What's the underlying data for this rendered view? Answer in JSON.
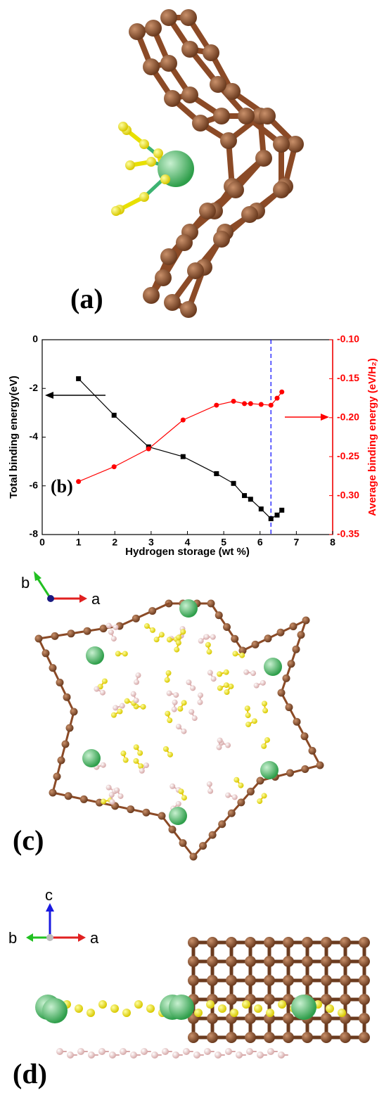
{
  "panels": {
    "a": {
      "label": "(a)"
    },
    "c": {
      "label": "(c)",
      "axes": [
        "b",
        "a"
      ]
    },
    "d": {
      "label": "(d)",
      "axes": [
        "c",
        "b",
        "a"
      ]
    }
  },
  "chart_data": {
    "type": "line",
    "annotation": "(b)",
    "xlabel": "Hydrogen storage (wt %)",
    "ylabel": "Total binding energy(eV)",
    "y2label": "Average binding energy (eV/H₂)",
    "xlim": [
      0,
      8
    ],
    "xticks": [
      0,
      1,
      2,
      3,
      4,
      5,
      6,
      7,
      8
    ],
    "ylim": [
      -8,
      0
    ],
    "yticks": [
      -8,
      -6,
      -4,
      -2,
      0
    ],
    "y2lim": [
      -0.35,
      -0.1
    ],
    "y2ticks": [
      {
        "value": -0.35,
        "label": "-0.35"
      },
      {
        "value": -0.3,
        "label": "-0.30"
      },
      {
        "value": -0.25,
        "label": "-0.25"
      },
      {
        "value": -0.2,
        "label": "-0.20"
      },
      {
        "value": -0.15,
        "label": "-0.15"
      },
      {
        "value": -0.1,
        "label": "-0.10"
      }
    ],
    "y2color": "#ff0000",
    "x": [
      1,
      1.98,
      2.93,
      3.88,
      4.8,
      5.27,
      5.57,
      5.74,
      6.03,
      6.3,
      6.47,
      6.6
    ],
    "series": [
      {
        "color": "#000000",
        "marker": "square",
        "values": [
          -1.6,
          -3.1,
          -4.4,
          -4.8,
          -5.5,
          -5.9,
          -6.4,
          -6.55,
          -6.95,
          -7.35,
          -7.2,
          -7.0
        ]
      },
      {
        "color": "#ff0000",
        "marker": "circle",
        "axis": "y2",
        "values": [
          -0.282,
          -0.263,
          -0.24,
          -0.203,
          -0.184,
          -0.179,
          -0.182,
          -0.182,
          -0.183,
          -0.184,
          -0.175,
          -0.167
        ]
      }
    ],
    "vline_x": 6.3,
    "vline_color": "#0000ff"
  }
}
